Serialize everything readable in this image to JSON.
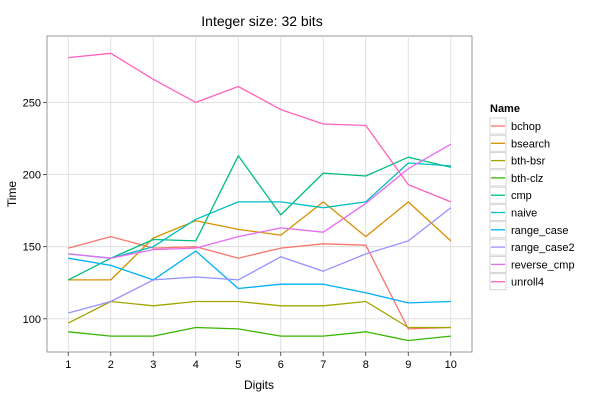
{
  "chart_data": {
    "type": "line",
    "title": "Integer size: 32 bits",
    "xlabel": "Digits",
    "ylabel": "Time",
    "x": [
      1,
      2,
      3,
      4,
      5,
      6,
      7,
      8,
      9,
      10
    ],
    "xlim": [
      0.5,
      10.5
    ],
    "ylim": [
      77,
      296
    ],
    "yticks": [
      100,
      150,
      200,
      250
    ],
    "grid": true,
    "legend": {
      "title": "Name",
      "placement": "right"
    },
    "series": [
      {
        "name": "bchop",
        "color": "#F8766D",
        "values": [
          149,
          157,
          149,
          150,
          142,
          149,
          152,
          151,
          93,
          94
        ]
      },
      {
        "name": "bsearch",
        "color": "#D89000",
        "values": [
          127,
          127,
          156,
          168,
          162,
          158,
          181,
          157,
          181,
          154
        ]
      },
      {
        "name": "bth-bsr",
        "color": "#A3A500",
        "values": [
          97,
          112,
          109,
          112,
          112,
          109,
          109,
          112,
          94,
          94
        ]
      },
      {
        "name": "bth-clz",
        "color": "#39B600",
        "values": [
          91,
          88,
          88,
          94,
          93,
          88,
          88,
          91,
          85,
          88
        ]
      },
      {
        "name": "cmp",
        "color": "#00BF7D",
        "values": [
          127,
          142,
          155,
          154,
          213,
          172,
          201,
          199,
          212,
          205
        ]
      },
      {
        "name": "naive",
        "color": "#00BFC4",
        "values": [
          145,
          142,
          150,
          169,
          181,
          181,
          177,
          181,
          208,
          206
        ]
      },
      {
        "name": "range_case",
        "color": "#00B0F6",
        "values": [
          142,
          137,
          127,
          147,
          121,
          124,
          124,
          118,
          111,
          112
        ]
      },
      {
        "name": "range_case2",
        "color": "#9590FF",
        "values": [
          104,
          112,
          127,
          129,
          127,
          143,
          133,
          145,
          154,
          177
        ]
      },
      {
        "name": "reverse_cmp",
        "color": "#E76BF3",
        "values": [
          145,
          142,
          148,
          149,
          157,
          163,
          160,
          180,
          204,
          221
        ]
      },
      {
        "name": "unroll4",
        "color": "#FF62BC",
        "values": [
          281,
          284,
          266,
          250,
          261,
          245,
          235,
          234,
          193,
          181
        ]
      }
    ]
  }
}
